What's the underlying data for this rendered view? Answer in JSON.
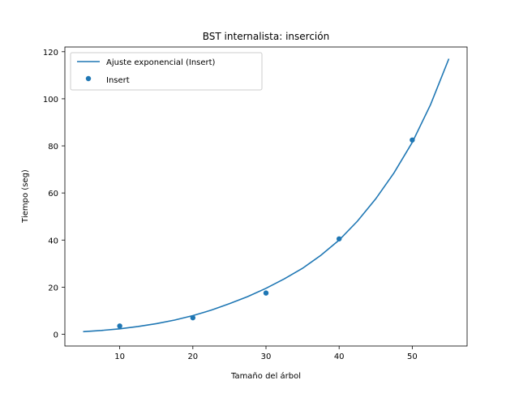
{
  "chart_data": {
    "type": "scatter",
    "title": "BST internalista: inserción",
    "xlabel": "Tamaño del árbol",
    "ylabel": "Tiempo (seg)",
    "xlim": [
      2.5,
      57.5
    ],
    "ylim": [
      -5,
      122
    ],
    "xticks": [
      10,
      20,
      30,
      40,
      50
    ],
    "yticks": [
      0,
      20,
      40,
      60,
      80,
      100,
      120
    ],
    "grid": false,
    "legend_position": "upper-left",
    "colors": {
      "series": "#1f77b4"
    },
    "series": [
      {
        "name": "Ajuste exponencial (Insert)",
        "kind": "line",
        "fit": "exponential",
        "x": [
          5,
          7.5,
          10,
          12.5,
          15,
          17.5,
          20,
          22.5,
          25,
          27.5,
          30,
          32.5,
          35,
          37.5,
          40,
          42.5,
          45,
          47.5,
          50,
          52.5,
          55
        ],
        "y": [
          1.1,
          1.6,
          2.3,
          3.3,
          4.5,
          6.0,
          7.9,
          10.2,
          13.0,
          16.0,
          19.5,
          23.5,
          28.0,
          33.5,
          40.0,
          48.0,
          57.5,
          68.5,
          81.5,
          97.5,
          117.0
        ]
      },
      {
        "name": "Insert",
        "kind": "scatter",
        "x": [
          10,
          20,
          30,
          40,
          50
        ],
        "y": [
          3.5,
          7.0,
          17.5,
          40.5,
          82.5
        ]
      }
    ]
  }
}
